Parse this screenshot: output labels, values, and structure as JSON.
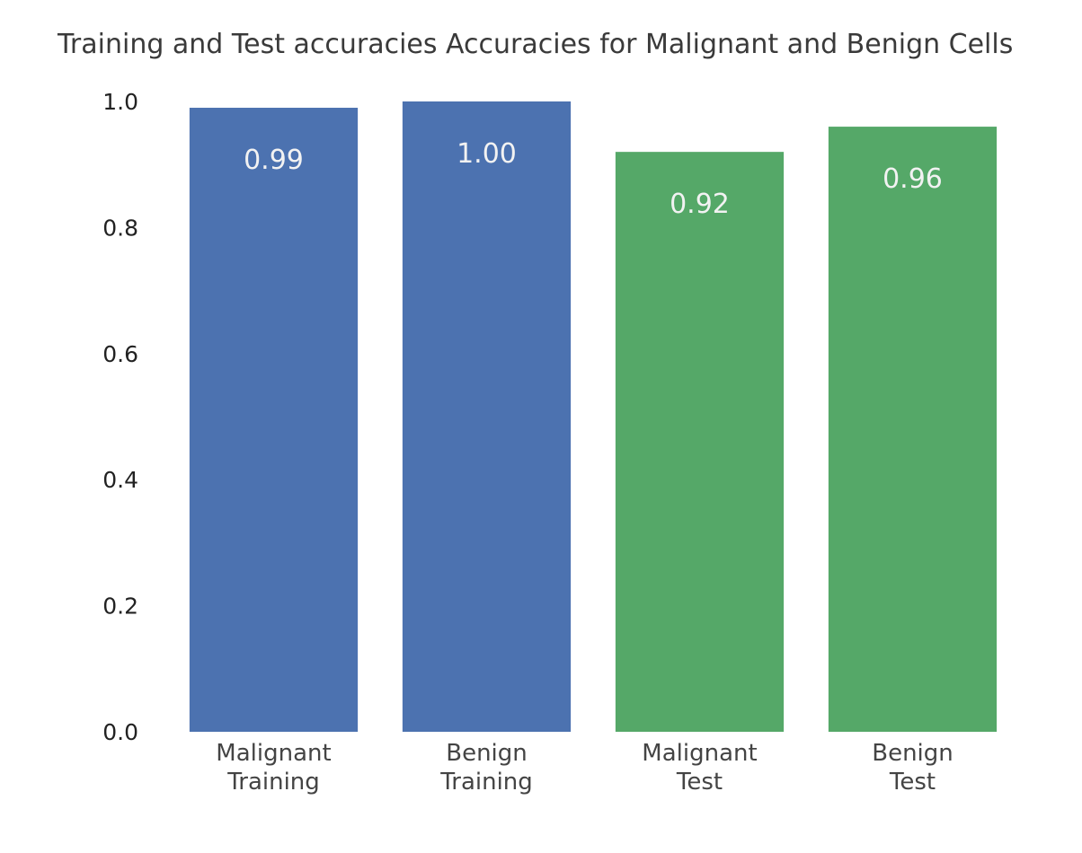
{
  "chart_data": {
    "type": "bar",
    "title": "Training and Test accuracies Accuracies for Malignant and Benign Cells",
    "categories": [
      [
        "Malignant",
        "Training"
      ],
      [
        "Benign",
        "Training"
      ],
      [
        "Malignant",
        "Test"
      ],
      [
        "Benign",
        "Test"
      ]
    ],
    "values": [
      0.99,
      1.0,
      0.92,
      0.96
    ],
    "value_labels": [
      "0.99",
      "1.00",
      "0.92",
      "0.96"
    ],
    "bar_colors": [
      "#4c72b0",
      "#4c72b0",
      "#55a868",
      "#55a868"
    ],
    "ylim": [
      0,
      1.0
    ],
    "yticks": [
      0.0,
      0.2,
      0.4,
      0.6,
      0.8,
      1.0
    ],
    "ytick_labels": [
      "0.0",
      "0.2",
      "0.4",
      "0.6",
      "0.8",
      "1.0"
    ],
    "xlabel": "",
    "ylabel": "",
    "grid": false,
    "legend": "none"
  }
}
